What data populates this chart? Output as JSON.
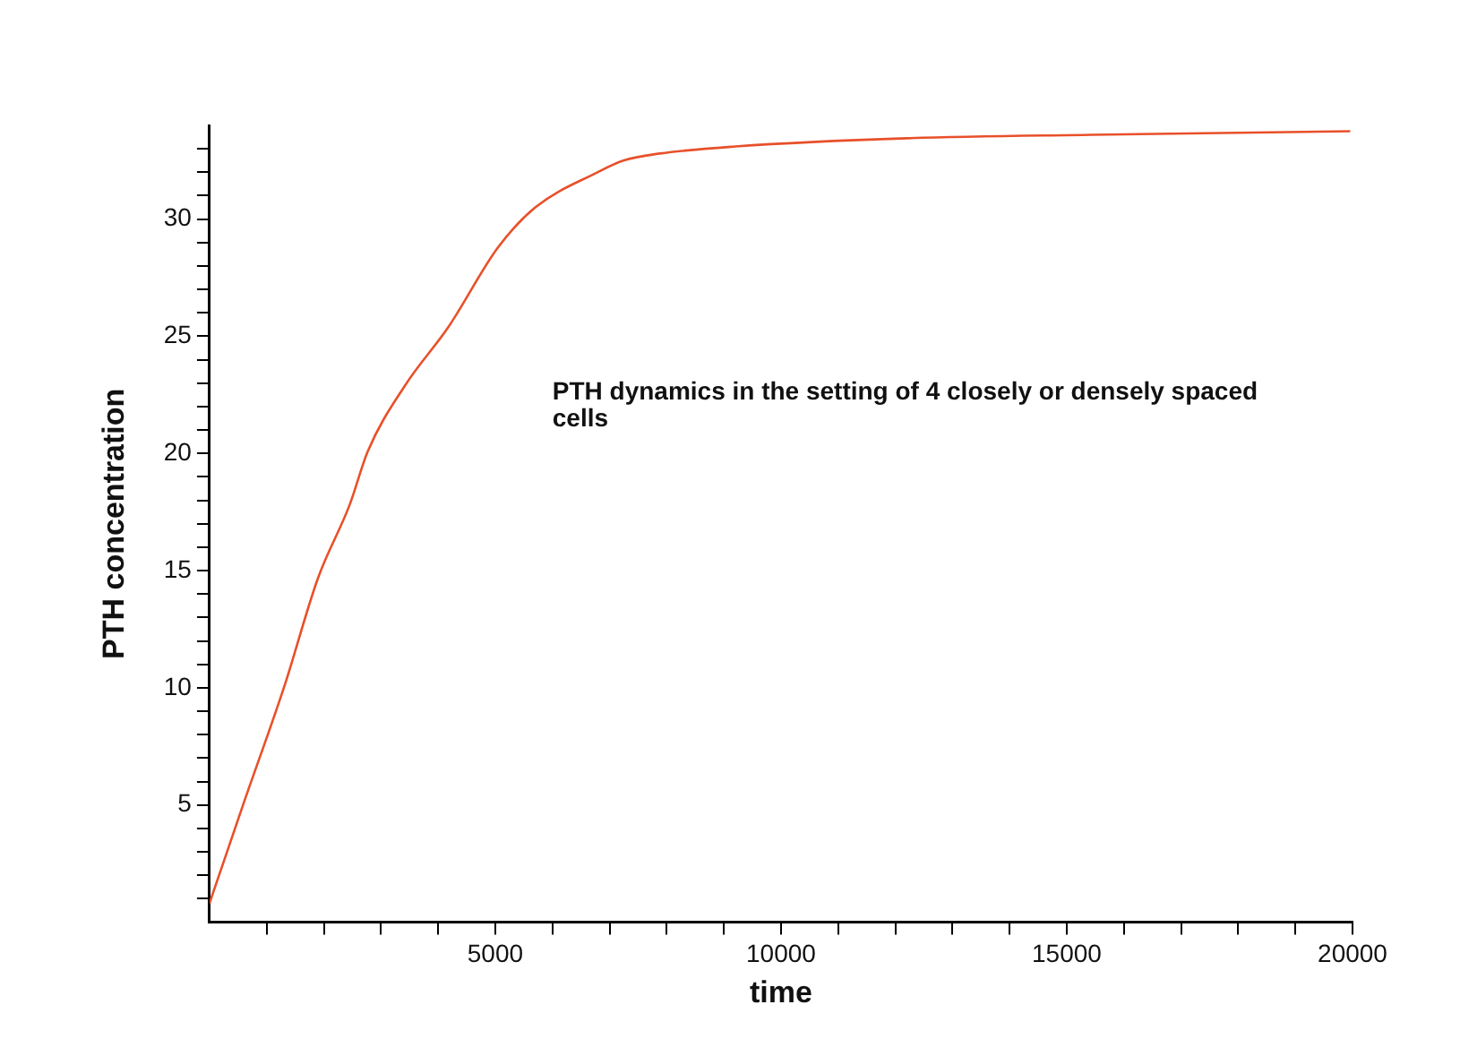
{
  "chart_data": {
    "type": "line",
    "xlabel": "time",
    "ylabel": "PTH concentration",
    "annotations": [
      "PTH dynamics in the setting of 4 closely or densely spaced cells"
    ],
    "series": [
      {
        "color": "#e8502a",
        "x": [
          0,
          54,
          600,
          1300,
          1900,
          2450,
          2770,
          3420,
          4180,
          5050,
          5700,
          6790,
          7240,
          7880,
          9200,
          12200,
          15430,
          19960
        ],
        "values": [
          0.8,
          1.2,
          5.1,
          10,
          14.7,
          17.8,
          20.1,
          22.9,
          25.4,
          28.8,
          30.5,
          32,
          32.5,
          32.8,
          33.1,
          33.45,
          33.6,
          33.75
        ]
      }
    ],
    "xlim": [
      0,
      20000
    ],
    "xticks": [
      {
        "value": 1000,
        "label": null
      },
      {
        "value": 2000,
        "label": null
      },
      {
        "value": 3000,
        "label": null
      },
      {
        "value": 4000,
        "label": null
      },
      5000,
      {
        "value": 6000,
        "label": null
      },
      {
        "value": 7000,
        "label": null
      },
      {
        "value": 8000,
        "label": null
      },
      {
        "value": 9000,
        "label": null
      },
      10000,
      {
        "value": 11000,
        "label": null
      },
      {
        "value": 12000,
        "label": null
      },
      {
        "value": 13000,
        "label": null
      },
      {
        "value": 14000,
        "label": null
      },
      15000,
      {
        "value": 16000,
        "label": null
      },
      {
        "value": 17000,
        "label": null
      },
      {
        "value": 18000,
        "label": null
      },
      {
        "value": 19000,
        "label": null
      },
      20000
    ],
    "ylim": [
      0,
      34
    ],
    "yticks": [
      {
        "value": 1,
        "label": null
      },
      {
        "value": 2,
        "label": null
      },
      {
        "value": 3,
        "label": null
      },
      {
        "value": 4,
        "label": null
      },
      5,
      {
        "value": 6,
        "label": null
      },
      {
        "value": 7,
        "label": null
      },
      {
        "value": 8,
        "label": null
      },
      {
        "value": 9,
        "label": null
      },
      10,
      {
        "value": 11,
        "label": null
      },
      {
        "value": 12,
        "label": null
      },
      {
        "value": 13,
        "label": null
      },
      {
        "value": 14,
        "label": null
      },
      15,
      {
        "value": 16,
        "label": null
      },
      {
        "value": 17,
        "label": null
      },
      {
        "value": 18,
        "label": null
      },
      {
        "value": 19,
        "label": null
      },
      20,
      {
        "value": 21,
        "label": null
      },
      {
        "value": 22,
        "label": null
      },
      {
        "value": 23,
        "label": null
      },
      {
        "value": 24,
        "label": null
      },
      25,
      {
        "value": 26,
        "label": null
      },
      {
        "value": 27,
        "label": null
      },
      {
        "value": 28,
        "label": null
      },
      {
        "value": 29,
        "label": null
      },
      30,
      {
        "value": 31,
        "label": null
      },
      {
        "value": 32,
        "label": null
      },
      {
        "value": 33,
        "label": null
      }
    ],
    "grid": false,
    "legend": false,
    "marker": "none",
    "line_style": "solid"
  }
}
